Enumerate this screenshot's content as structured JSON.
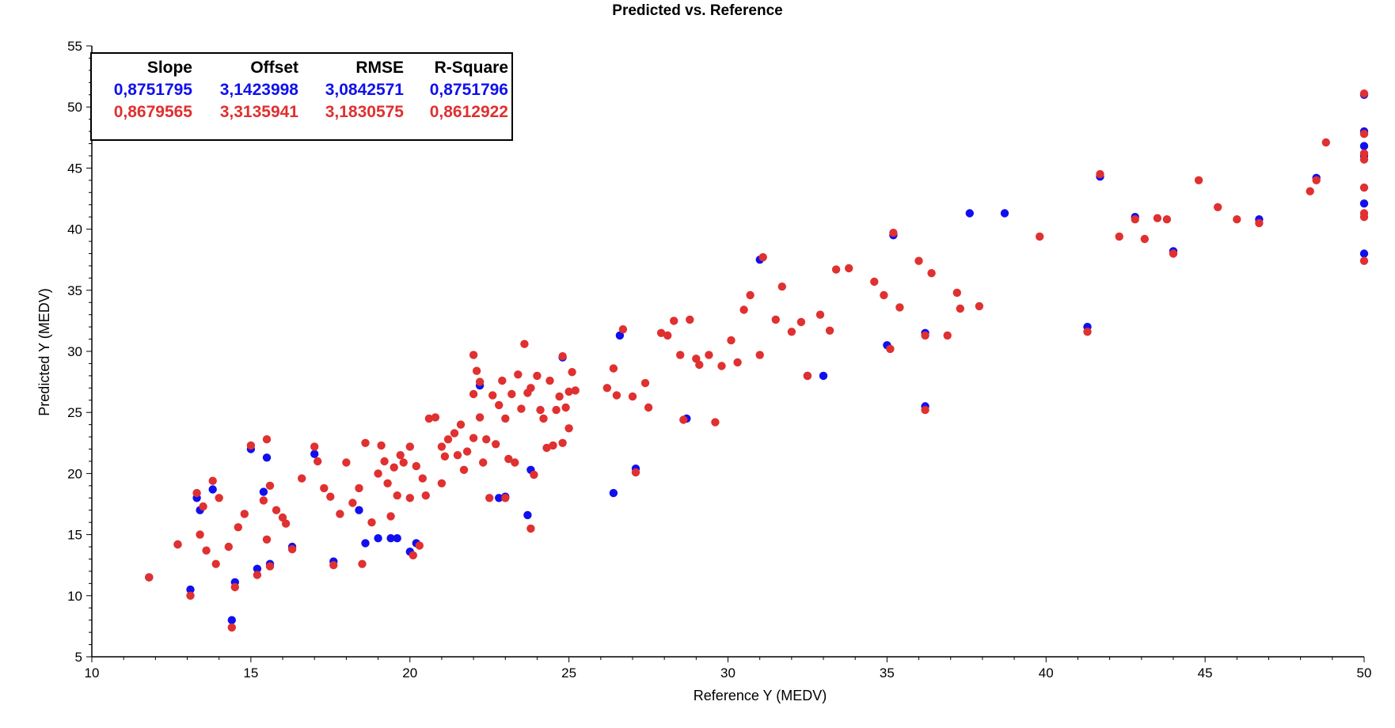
{
  "chart_data": {
    "type": "scatter",
    "title": "Predicted vs. Reference",
    "xlabel": "Reference Y (MEDV)",
    "ylabel": "Predicted Y (MEDV)",
    "xlim": [
      10,
      50
    ],
    "ylim": [
      5,
      55
    ],
    "xticks": [
      10,
      15,
      20,
      25,
      30,
      35,
      40,
      45,
      50
    ],
    "yticks": [
      5,
      10,
      15,
      20,
      25,
      30,
      35,
      40,
      45,
      50,
      55
    ],
    "colors": {
      "series1": "#1010ee",
      "series2": "#e03030"
    },
    "stats_table": {
      "headers": [
        "Slope",
        "Offset",
        "RMSE",
        "R-Square"
      ],
      "rows": [
        {
          "series": "series1",
          "values": [
            "0,8751795",
            "3,1423998",
            "3,0842571",
            "0,8751796"
          ]
        },
        {
          "series": "series2",
          "values": [
            "0,8679565",
            "3,3135941",
            "3,1830575",
            "0,8612922"
          ]
        }
      ]
    },
    "series": [
      {
        "name": "series1",
        "x": [
          11.8,
          12.7,
          13.1,
          13.3,
          13.4,
          13.8,
          14.4,
          14.5,
          15.0,
          15.2,
          15.4,
          15.5,
          15.6,
          16.3,
          17.0,
          17.6,
          18.4,
          18.6,
          19.0,
          19.4,
          19.6,
          20.0,
          20.2,
          22.2,
          22.8,
          23.0,
          23.7,
          23.8,
          24.8,
          26.4,
          26.6,
          27.1,
          28.7,
          31.0,
          32.5,
          33.0,
          35.0,
          35.2,
          36.2,
          36.2,
          37.6,
          38.7,
          41.3,
          41.7,
          42.8,
          44.0,
          46.7,
          48.5,
          50.0,
          50.0,
          50.0,
          50.0,
          50.0,
          50.0
        ],
        "y": [
          11.5,
          14.2,
          10.5,
          18.0,
          17.0,
          18.7,
          8.0,
          11.1,
          22.0,
          12.2,
          18.5,
          21.3,
          12.6,
          14.0,
          21.6,
          12.8,
          17.0,
          14.3,
          14.7,
          14.7,
          14.7,
          13.6,
          14.3,
          27.2,
          18.0,
          18.1,
          16.6,
          20.3,
          29.5,
          18.4,
          31.3,
          20.4,
          24.5,
          37.5,
          28.0,
          28.0,
          30.5,
          39.5,
          25.5,
          31.5,
          41.3,
          41.3,
          32.0,
          44.3,
          41.0,
          38.2,
          40.8,
          44.2,
          51.0,
          48.0,
          46.8,
          46.0,
          42.1,
          38.0
        ]
      },
      {
        "name": "series2",
        "x": [
          11.8,
          12.7,
          13.1,
          13.3,
          13.4,
          13.5,
          13.6,
          13.8,
          13.9,
          14.0,
          14.3,
          14.4,
          14.5,
          14.6,
          14.8,
          15.0,
          15.2,
          15.4,
          15.5,
          15.5,
          15.6,
          15.6,
          15.8,
          16.0,
          16.1,
          16.3,
          16.6,
          17.0,
          17.1,
          17.3,
          17.5,
          17.6,
          17.8,
          18.0,
          18.2,
          18.4,
          18.5,
          18.6,
          18.8,
          19.0,
          19.1,
          19.2,
          19.3,
          19.4,
          19.5,
          19.6,
          19.7,
          19.8,
          20.0,
          20.0,
          20.1,
          20.2,
          20.3,
          20.4,
          20.5,
          20.6,
          20.8,
          21.0,
          21.0,
          21.1,
          21.2,
          21.4,
          21.5,
          21.6,
          21.7,
          21.8,
          22.0,
          22.0,
          22.0,
          22.1,
          22.2,
          22.2,
          22.3,
          22.4,
          22.5,
          22.6,
          22.7,
          22.8,
          22.9,
          23.0,
          23.0,
          23.1,
          23.2,
          23.3,
          23.4,
          23.5,
          23.6,
          23.7,
          23.8,
          23.8,
          23.9,
          24.0,
          24.1,
          24.2,
          24.3,
          24.4,
          24.5,
          24.6,
          24.7,
          24.8,
          24.8,
          24.9,
          25.0,
          25.0,
          25.1,
          25.2,
          26.2,
          26.4,
          26.5,
          26.7,
          27.0,
          27.1,
          27.4,
          27.5,
          27.9,
          28.1,
          28.3,
          28.5,
          28.6,
          28.8,
          29.0,
          29.1,
          29.4,
          29.6,
          29.8,
          30.1,
          30.3,
          30.5,
          30.7,
          31.0,
          31.1,
          31.5,
          31.7,
          32.0,
          32.3,
          32.5,
          32.9,
          33.2,
          33.4,
          33.8,
          34.6,
          34.9,
          35.1,
          35.2,
          35.4,
          36.0,
          36.2,
          36.2,
          36.4,
          36.9,
          37.2,
          37.3,
          37.9,
          39.8,
          41.3,
          41.7,
          42.3,
          42.8,
          43.1,
          43.5,
          43.8,
          44.0,
          44.8,
          45.4,
          46.0,
          46.7,
          48.3,
          48.5,
          48.8,
          50.0,
          50.0,
          50.0,
          50.0,
          50.0,
          50.0,
          50.0,
          50.0
        ],
        "y": [
          11.5,
          14.2,
          10.0,
          18.4,
          15.0,
          17.3,
          13.7,
          19.4,
          12.6,
          18.0,
          14.0,
          7.4,
          10.7,
          15.6,
          16.7,
          22.3,
          11.7,
          17.8,
          22.8,
          14.6,
          12.4,
          19.0,
          17.0,
          16.4,
          15.9,
          13.8,
          19.6,
          22.2,
          21.0,
          18.8,
          18.1,
          12.5,
          16.7,
          20.9,
          17.6,
          18.8,
          12.6,
          22.5,
          16.0,
          20.0,
          22.3,
          21.0,
          19.2,
          16.5,
          20.5,
          18.2,
          21.5,
          20.9,
          22.2,
          18.0,
          13.3,
          20.6,
          14.1,
          19.6,
          18.2,
          24.5,
          24.6,
          22.2,
          19.2,
          21.4,
          22.8,
          23.3,
          21.5,
          24.0,
          20.3,
          21.8,
          22.9,
          26.5,
          29.7,
          28.4,
          24.6,
          27.5,
          20.9,
          22.8,
          18.0,
          26.4,
          22.4,
          25.6,
          27.6,
          18.0,
          24.5,
          21.2,
          26.5,
          20.9,
          28.1,
          25.3,
          30.6,
          26.6,
          27.0,
          15.5,
          19.9,
          28.0,
          25.2,
          24.5,
          22.1,
          27.6,
          22.3,
          25.2,
          26.3,
          29.6,
          22.5,
          25.4,
          23.7,
          26.7,
          28.3,
          26.8,
          27.0,
          28.6,
          26.4,
          31.8,
          26.3,
          20.1,
          27.4,
          25.4,
          31.5,
          31.3,
          32.5,
          29.7,
          24.4,
          32.6,
          29.4,
          28.9,
          29.7,
          24.2,
          28.8,
          30.9,
          29.1,
          33.4,
          34.6,
          29.7,
          37.7,
          32.6,
          35.3,
          31.6,
          32.4,
          28.0,
          33.0,
          31.7,
          36.7,
          36.8,
          35.7,
          34.6,
          30.2,
          39.7,
          33.6,
          37.4,
          25.2,
          31.3,
          36.4,
          31.3,
          34.8,
          33.5,
          33.7,
          39.4,
          31.6,
          44.5,
          39.4,
          40.8,
          39.2,
          40.9,
          40.8,
          38.0,
          44.0,
          41.8,
          40.8,
          40.5,
          43.1,
          44.0,
          47.1,
          51.1,
          47.8,
          46.2,
          45.7,
          43.4,
          41.3,
          41.0,
          37.4
        ]
      }
    ]
  }
}
